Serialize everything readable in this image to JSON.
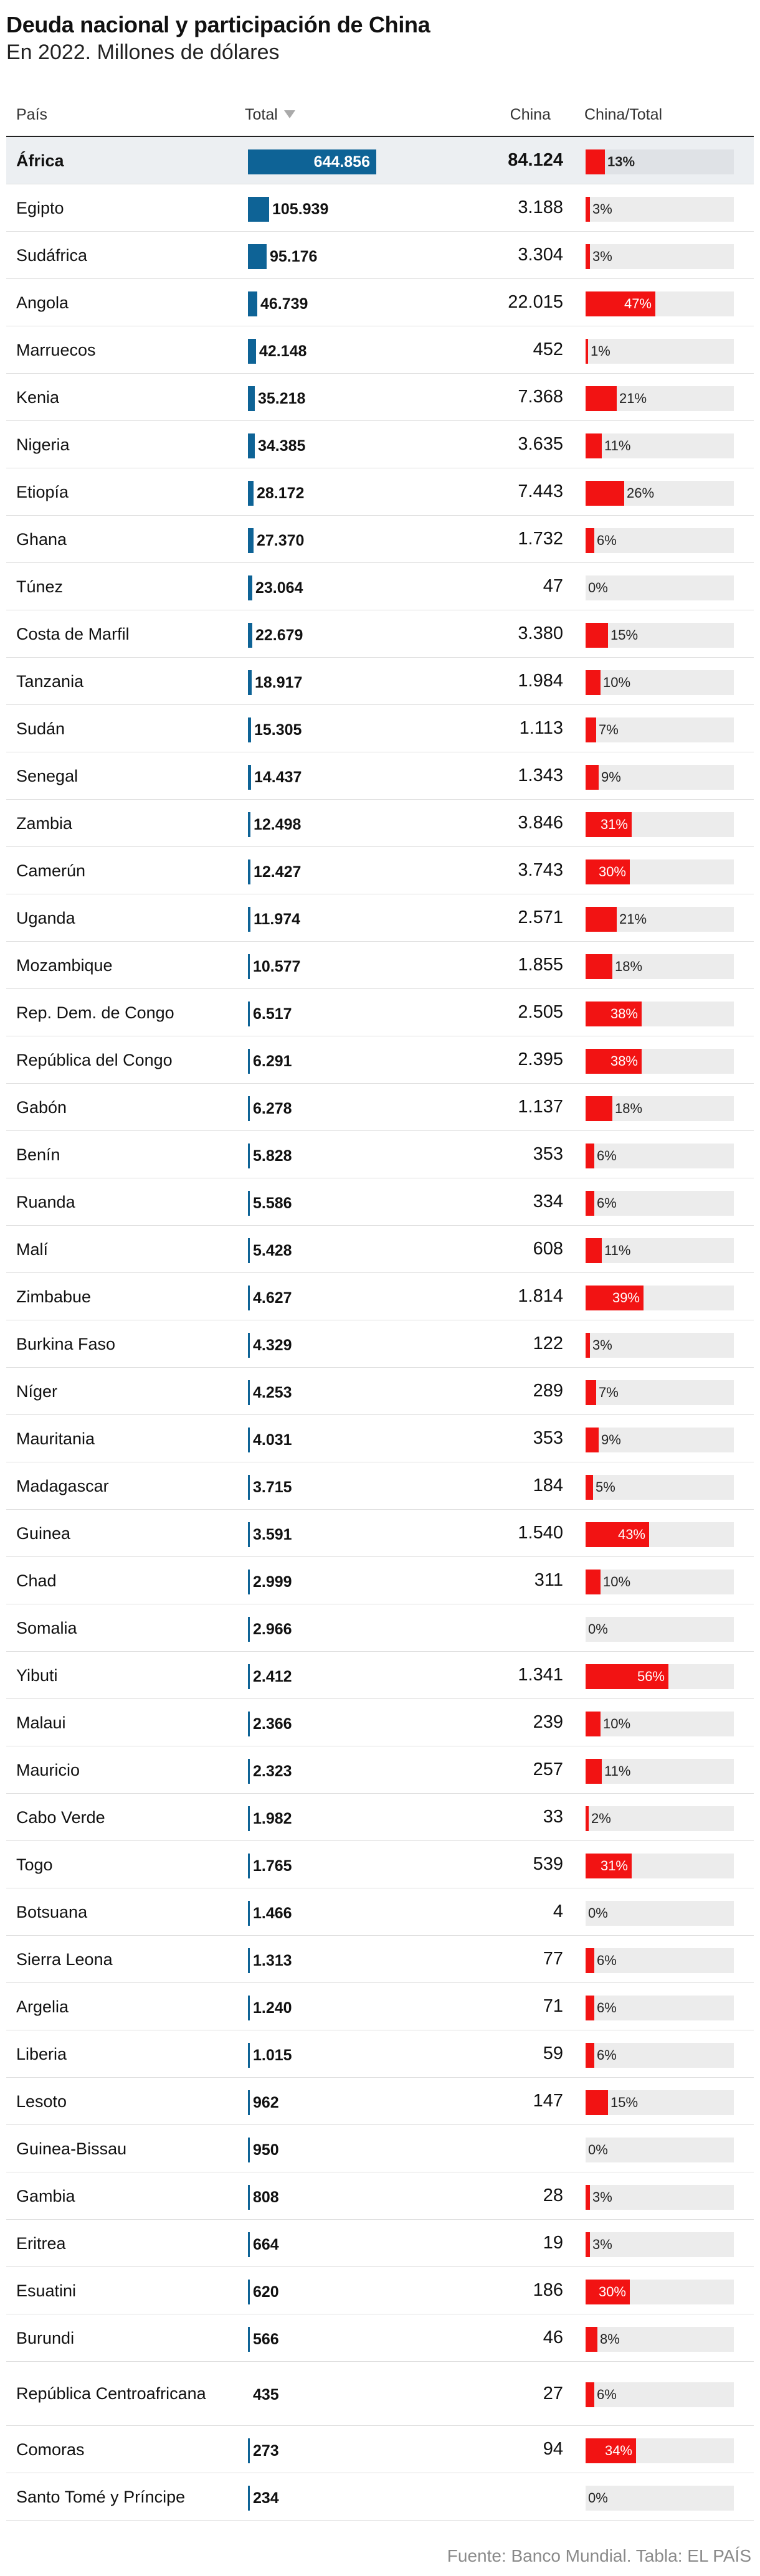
{
  "title": "Deuda nacional y participación de China",
  "subtitle": "En 2022. Millones de dólares",
  "source": "Fuente: Banco Mundial. Tabla: EL PAÍS",
  "columns": {
    "country": "País",
    "total": "Total",
    "china": "China",
    "ratio": "China/Total"
  },
  "colors": {
    "total_bar": "#0e6396",
    "china_bar": "#f21313",
    "track": "#ececec",
    "highlight_row": "#eceff2"
  },
  "chart_data": {
    "type": "table",
    "sorted_by": "Total",
    "sort_direction": "descending",
    "rows": [
      {
        "country": "África",
        "total": "644.856",
        "total_value": 644856,
        "china": "84.124",
        "ratio": "13%",
        "ratio_value": 13,
        "highlight": true
      },
      {
        "country": "Egipto",
        "total": "105.939",
        "total_value": 105939,
        "china": "3.188",
        "ratio": "3%",
        "ratio_value": 3
      },
      {
        "country": "Sudáfrica",
        "total": "95.176",
        "total_value": 95176,
        "china": "3.304",
        "ratio": "3%",
        "ratio_value": 3
      },
      {
        "country": "Angola",
        "total": "46.739",
        "total_value": 46739,
        "china": "22.015",
        "ratio": "47%",
        "ratio_value": 47
      },
      {
        "country": "Marruecos",
        "total": "42.148",
        "total_value": 42148,
        "china": "452",
        "ratio": "1%",
        "ratio_value": 1
      },
      {
        "country": "Kenia",
        "total": "35.218",
        "total_value": 35218,
        "china": "7.368",
        "ratio": "21%",
        "ratio_value": 21
      },
      {
        "country": "Nigeria",
        "total": "34.385",
        "total_value": 34385,
        "china": "3.635",
        "ratio": "11%",
        "ratio_value": 11
      },
      {
        "country": "Etiopía",
        "total": "28.172",
        "total_value": 28172,
        "china": "7.443",
        "ratio": "26%",
        "ratio_value": 26
      },
      {
        "country": "Ghana",
        "total": "27.370",
        "total_value": 27370,
        "china": "1.732",
        "ratio": "6%",
        "ratio_value": 6
      },
      {
        "country": "Túnez",
        "total": "23.064",
        "total_value": 23064,
        "china": "47",
        "ratio": "0%",
        "ratio_value": 0
      },
      {
        "country": "Costa de Marfil",
        "total": "22.679",
        "total_value": 22679,
        "china": "3.380",
        "ratio": "15%",
        "ratio_value": 15
      },
      {
        "country": "Tanzania",
        "total": "18.917",
        "total_value": 18917,
        "china": "1.984",
        "ratio": "10%",
        "ratio_value": 10
      },
      {
        "country": "Sudán",
        "total": "15.305",
        "total_value": 15305,
        "china": "1.113",
        "ratio": "7%",
        "ratio_value": 7
      },
      {
        "country": "Senegal",
        "total": "14.437",
        "total_value": 14437,
        "china": "1.343",
        "ratio": "9%",
        "ratio_value": 9
      },
      {
        "country": "Zambia",
        "total": "12.498",
        "total_value": 12498,
        "china": "3.846",
        "ratio": "31%",
        "ratio_value": 31
      },
      {
        "country": "Camerún",
        "total": "12.427",
        "total_value": 12427,
        "china": "3.743",
        "ratio": "30%",
        "ratio_value": 30
      },
      {
        "country": "Uganda",
        "total": "11.974",
        "total_value": 11974,
        "china": "2.571",
        "ratio": "21%",
        "ratio_value": 21
      },
      {
        "country": "Mozambique",
        "total": "10.577",
        "total_value": 10577,
        "china": "1.855",
        "ratio": "18%",
        "ratio_value": 18
      },
      {
        "country": "Rep. Dem. de Congo",
        "total": "6.517",
        "total_value": 6517,
        "china": "2.505",
        "ratio": "38%",
        "ratio_value": 38
      },
      {
        "country": "República del Congo",
        "total": "6.291",
        "total_value": 6291,
        "china": "2.395",
        "ratio": "38%",
        "ratio_value": 38
      },
      {
        "country": "Gabón",
        "total": "6.278",
        "total_value": 6278,
        "china": "1.137",
        "ratio": "18%",
        "ratio_value": 18
      },
      {
        "country": "Benín",
        "total": "5.828",
        "total_value": 5828,
        "china": "353",
        "ratio": "6%",
        "ratio_value": 6
      },
      {
        "country": "Ruanda",
        "total": "5.586",
        "total_value": 5586,
        "china": "334",
        "ratio": "6%",
        "ratio_value": 6
      },
      {
        "country": "Malí",
        "total": "5.428",
        "total_value": 5428,
        "china": "608",
        "ratio": "11%",
        "ratio_value": 11
      },
      {
        "country": "Zimbabue",
        "total": "4.627",
        "total_value": 4627,
        "china": "1.814",
        "ratio": "39%",
        "ratio_value": 39
      },
      {
        "country": "Burkina Faso",
        "total": "4.329",
        "total_value": 4329,
        "china": "122",
        "ratio": "3%",
        "ratio_value": 3
      },
      {
        "country": "Níger",
        "total": "4.253",
        "total_value": 4253,
        "china": "289",
        "ratio": "7%",
        "ratio_value": 7
      },
      {
        "country": "Mauritania",
        "total": "4.031",
        "total_value": 4031,
        "china": "353",
        "ratio": "9%",
        "ratio_value": 9
      },
      {
        "country": "Madagascar",
        "total": "3.715",
        "total_value": 3715,
        "china": "184",
        "ratio": "5%",
        "ratio_value": 5
      },
      {
        "country": "Guinea",
        "total": "3.591",
        "total_value": 3591,
        "china": "1.540",
        "ratio": "43%",
        "ratio_value": 43
      },
      {
        "country": "Chad",
        "total": "2.999",
        "total_value": 2999,
        "china": "311",
        "ratio": "10%",
        "ratio_value": 10
      },
      {
        "country": "Somalia",
        "total": "2.966",
        "total_value": 2966,
        "china": "",
        "ratio": "0%",
        "ratio_value": 0
      },
      {
        "country": "Yibuti",
        "total": "2.412",
        "total_value": 2412,
        "china": "1.341",
        "ratio": "56%",
        "ratio_value": 56
      },
      {
        "country": "Malaui",
        "total": "2.366",
        "total_value": 2366,
        "china": "239",
        "ratio": "10%",
        "ratio_value": 10
      },
      {
        "country": "Mauricio",
        "total": "2.323",
        "total_value": 2323,
        "china": "257",
        "ratio": "11%",
        "ratio_value": 11
      },
      {
        "country": "Cabo Verde",
        "total": "1.982",
        "total_value": 1982,
        "china": "33",
        "ratio": "2%",
        "ratio_value": 2
      },
      {
        "country": "Togo",
        "total": "1.765",
        "total_value": 1765,
        "china": "539",
        "ratio": "31%",
        "ratio_value": 31
      },
      {
        "country": "Botsuana",
        "total": "1.466",
        "total_value": 1466,
        "china": "4",
        "ratio": "0%",
        "ratio_value": 0
      },
      {
        "country": "Sierra Leona",
        "total": "1.313",
        "total_value": 1313,
        "china": "77",
        "ratio": "6%",
        "ratio_value": 6
      },
      {
        "country": "Argelia",
        "total": "1.240",
        "total_value": 1240,
        "china": "71",
        "ratio": "6%",
        "ratio_value": 6
      },
      {
        "country": "Liberia",
        "total": "1.015",
        "total_value": 1015,
        "china": "59",
        "ratio": "6%",
        "ratio_value": 6
      },
      {
        "country": "Lesoto",
        "total": "962",
        "total_value": 962,
        "china": "147",
        "ratio": "15%",
        "ratio_value": 15
      },
      {
        "country": "Guinea-Bissau",
        "total": "950",
        "total_value": 950,
        "china": "",
        "ratio": "0%",
        "ratio_value": 0
      },
      {
        "country": "Gambia",
        "total": "808",
        "total_value": 808,
        "china": "28",
        "ratio": "3%",
        "ratio_value": 3
      },
      {
        "country": "Eritrea",
        "total": "664",
        "total_value": 664,
        "china": "19",
        "ratio": "3%",
        "ratio_value": 3
      },
      {
        "country": "Esuatini",
        "total": "620",
        "total_value": 620,
        "china": "186",
        "ratio": "30%",
        "ratio_value": 30
      },
      {
        "country": "Burundi",
        "total": "566",
        "total_value": 566,
        "china": "46",
        "ratio": "8%",
        "ratio_value": 8
      },
      {
        "country": "República Centroafricana",
        "total": "435",
        "total_value": 435,
        "china": "27",
        "ratio": "6%",
        "ratio_value": 6,
        "tall": true
      },
      {
        "country": "Comoras",
        "total": "273",
        "total_value": 273,
        "china": "94",
        "ratio": "34%",
        "ratio_value": 34
      },
      {
        "country": "Santo Tomé y Príncipe",
        "total": "234",
        "total_value": 234,
        "china": "",
        "ratio": "0%",
        "ratio_value": 0
      }
    ]
  }
}
